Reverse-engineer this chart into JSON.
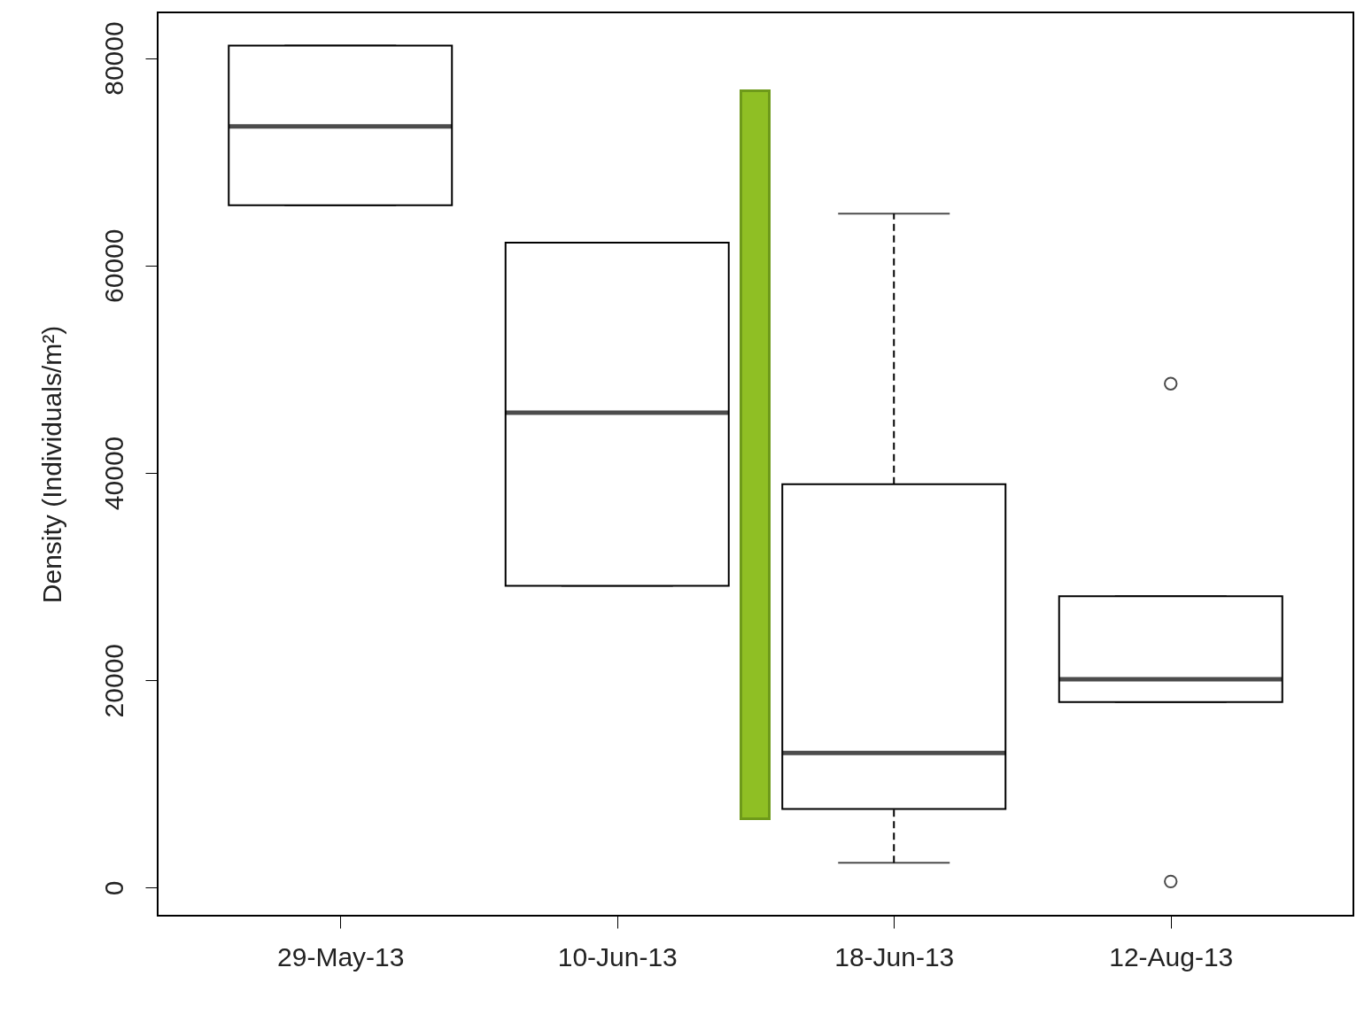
{
  "chart_data": {
    "type": "box",
    "ylabel": "Density (Individuals/m²)",
    "categories": [
      "29-May-13",
      "10-Jun-13",
      "18-Jun-13",
      "12-Aug-13"
    ],
    "boxes": [
      {
        "low": 65800,
        "q1": 65800,
        "median": 73400,
        "q3": 81200,
        "high": 81200
      },
      {
        "low": 29100,
        "q1": 29100,
        "median": 45800,
        "q3": 62200,
        "high": 62200
      },
      {
        "low": 2400,
        "q1": 7600,
        "median": 13000,
        "q3": 38900,
        "high": 65000
      },
      {
        "low": 17900,
        "q1": 17900,
        "median": 20100,
        "q3": 28100,
        "high": 28100,
        "outliers": [
          48600,
          600
        ]
      }
    ],
    "ylim": [
      -2700,
      84400
    ],
    "yticks": [
      0,
      20000,
      40000,
      60000,
      80000
    ],
    "grid": false,
    "marker": "circle"
  }
}
